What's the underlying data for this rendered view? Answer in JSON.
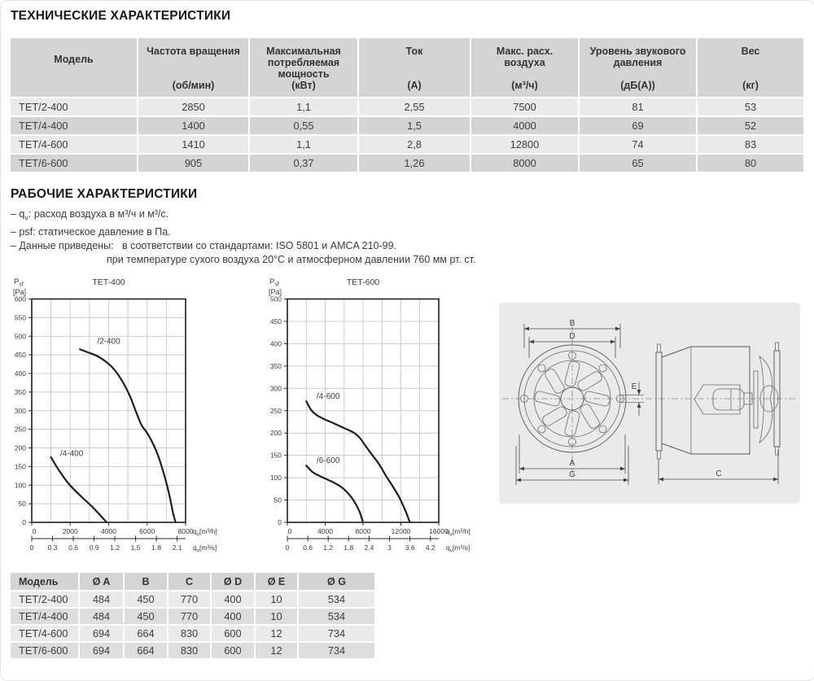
{
  "titles": {
    "specs": "ТЕХНИЧЕСКИЕ ХАРАКТЕРИСТИКИ",
    "operating": "РАБОЧИЕ ХАРАКТЕРИСТИКИ"
  },
  "spec_table": {
    "columns": [
      {
        "name": "Модель",
        "unit": ""
      },
      {
        "name": "Частота вращения",
        "unit": "(об/мин)"
      },
      {
        "name": "Максимальная потребляемая мощность",
        "unit": "(кВт)"
      },
      {
        "name": "Ток",
        "unit": "(А)"
      },
      {
        "name": "Макс. расх. воздуха",
        "unit": "(м³/ч)"
      },
      {
        "name": "Уровень звукового давления",
        "unit": "(дБ(А))"
      },
      {
        "name": "Вес",
        "unit": "(кг)"
      }
    ],
    "rows": [
      [
        "ТЕТ/2-400",
        "2850",
        "1,1",
        "2,55",
        "7500",
        "81",
        "53"
      ],
      [
        "ТЕТ/4-400",
        "1400",
        "0,55",
        "1,5",
        "4000",
        "69",
        "52"
      ],
      [
        "ТЕТ/4-600",
        "1410",
        "1,1",
        "2,8",
        "12800",
        "74",
        "83"
      ],
      [
        "ТЕТ/6-600",
        "905",
        "0,37",
        "1,26",
        "8000",
        "65",
        "80"
      ]
    ]
  },
  "notes": {
    "n1_pre": "– q",
    "n1_sub": "v",
    "n1_post": ": расход воздуха в м³/ч и м³/с.",
    "n2": "– psf: статическое давление в Па.",
    "n3_label": "– Данные приведены:",
    "n3_text": "в соответствии со стандартами: ISO 5801 и AMCA 210-99.",
    "n4": "при температуре сухого воздуха 20°C и атмосферном давлении 760 мм рт. ст."
  },
  "chart_data": [
    {
      "type": "line",
      "title": "TET-400",
      "ylabel": {
        "main": "P",
        "sub": "sf",
        "unit": "[Pa]"
      },
      "xunit": {
        "main": "q",
        "sub": "v",
        "per_hour": "[m³/h]",
        "per_sec": "[m³/s]"
      },
      "ylim": [
        0,
        600
      ],
      "y_step": 50,
      "xlim_h": [
        0,
        8000
      ],
      "x_grid_step": 1000,
      "x_label_step": 2000,
      "x2_max_at_right": 2.2222,
      "x2_ticks": [
        0,
        0.3,
        0.6,
        0.9,
        1.2,
        1.5,
        1.8,
        2.1
      ],
      "grid": true,
      "series": [
        {
          "name": "/2-400",
          "label_at": [
            3400,
            480
          ],
          "points": [
            [
              2500,
              465
            ],
            [
              2900,
              457
            ],
            [
              3400,
              447
            ],
            [
              3900,
              430
            ],
            [
              4300,
              410
            ],
            [
              4700,
              380
            ],
            [
              5100,
              340
            ],
            [
              5400,
              300
            ],
            [
              5700,
              262
            ],
            [
              6000,
              240
            ],
            [
              6300,
              212
            ],
            [
              6600,
              175
            ],
            [
              6900,
              125
            ],
            [
              7150,
              75
            ],
            [
              7350,
              25
            ],
            [
              7480,
              0
            ]
          ]
        },
        {
          "name": "/4-400",
          "label_at": [
            1480,
            178
          ],
          "points": [
            [
              1000,
              175
            ],
            [
              1350,
              145
            ],
            [
              1900,
              105
            ],
            [
              2600,
              68
            ],
            [
              3200,
              39
            ],
            [
              3900,
              0
            ]
          ]
        }
      ]
    },
    {
      "type": "line",
      "title": "TET-600",
      "ylabel": {
        "main": "P",
        "sub": "sf",
        "unit": "[Pa]"
      },
      "xunit": {
        "main": "q",
        "sub": "v",
        "per_hour": "[m³/h]",
        "per_sec": "[m³/s]"
      },
      "ylim": [
        0,
        500
      ],
      "y_step": 50,
      "xlim_h": [
        0,
        16000
      ],
      "x_grid_step": 2000,
      "x_label_step": 4000,
      "x2_max_at_right": 4.4444,
      "x2_ticks": [
        0,
        0.6,
        1.2,
        1.8,
        2.4,
        3,
        3.6,
        4.2
      ],
      "grid": true,
      "series": [
        {
          "name": "/4-600",
          "label_at": [
            3100,
            277
          ],
          "points": [
            [
              2000,
              271
            ],
            [
              2500,
              252
            ],
            [
              3100,
              240
            ],
            [
              4000,
              230
            ],
            [
              5000,
              221
            ],
            [
              6000,
              211
            ],
            [
              7000,
              201
            ],
            [
              7700,
              188
            ],
            [
              8300,
              170
            ],
            [
              9000,
              150
            ],
            [
              9700,
              130
            ],
            [
              10400,
              105
            ],
            [
              11100,
              82
            ],
            [
              11800,
              57
            ],
            [
              12500,
              25
            ],
            [
              12950,
              0
            ]
          ]
        },
        {
          "name": "/6-600",
          "label_at": [
            3100,
            133
          ],
          "points": [
            [
              2000,
              127
            ],
            [
              2700,
              112
            ],
            [
              3500,
              103
            ],
            [
              4300,
              95
            ],
            [
              5000,
              88
            ],
            [
              5700,
              79
            ],
            [
              6300,
              68
            ],
            [
              6800,
              55
            ],
            [
              7300,
              38
            ],
            [
              7700,
              20
            ],
            [
              8000,
              0
            ]
          ]
        }
      ]
    }
  ],
  "drawing": {
    "dims": {
      "a": "A",
      "b": "B",
      "c": "C",
      "d": "D",
      "e": "E",
      "g": "G"
    }
  },
  "dim_table": {
    "headers": [
      "Модель",
      "Ø A",
      "B",
      "C",
      "Ø D",
      "Ø E",
      "Ø G"
    ],
    "rows": [
      [
        "ТЕТ/2-400",
        "484",
        "450",
        "770",
        "400",
        "10",
        "534"
      ],
      [
        "ТЕТ/4-400",
        "484",
        "450",
        "770",
        "400",
        "10",
        "534"
      ],
      [
        "ТЕТ/4-600",
        "694",
        "664",
        "830",
        "600",
        "12",
        "734"
      ],
      [
        "ТЕТ/6-600",
        "694",
        "664",
        "830",
        "600",
        "12",
        "734"
      ]
    ]
  }
}
